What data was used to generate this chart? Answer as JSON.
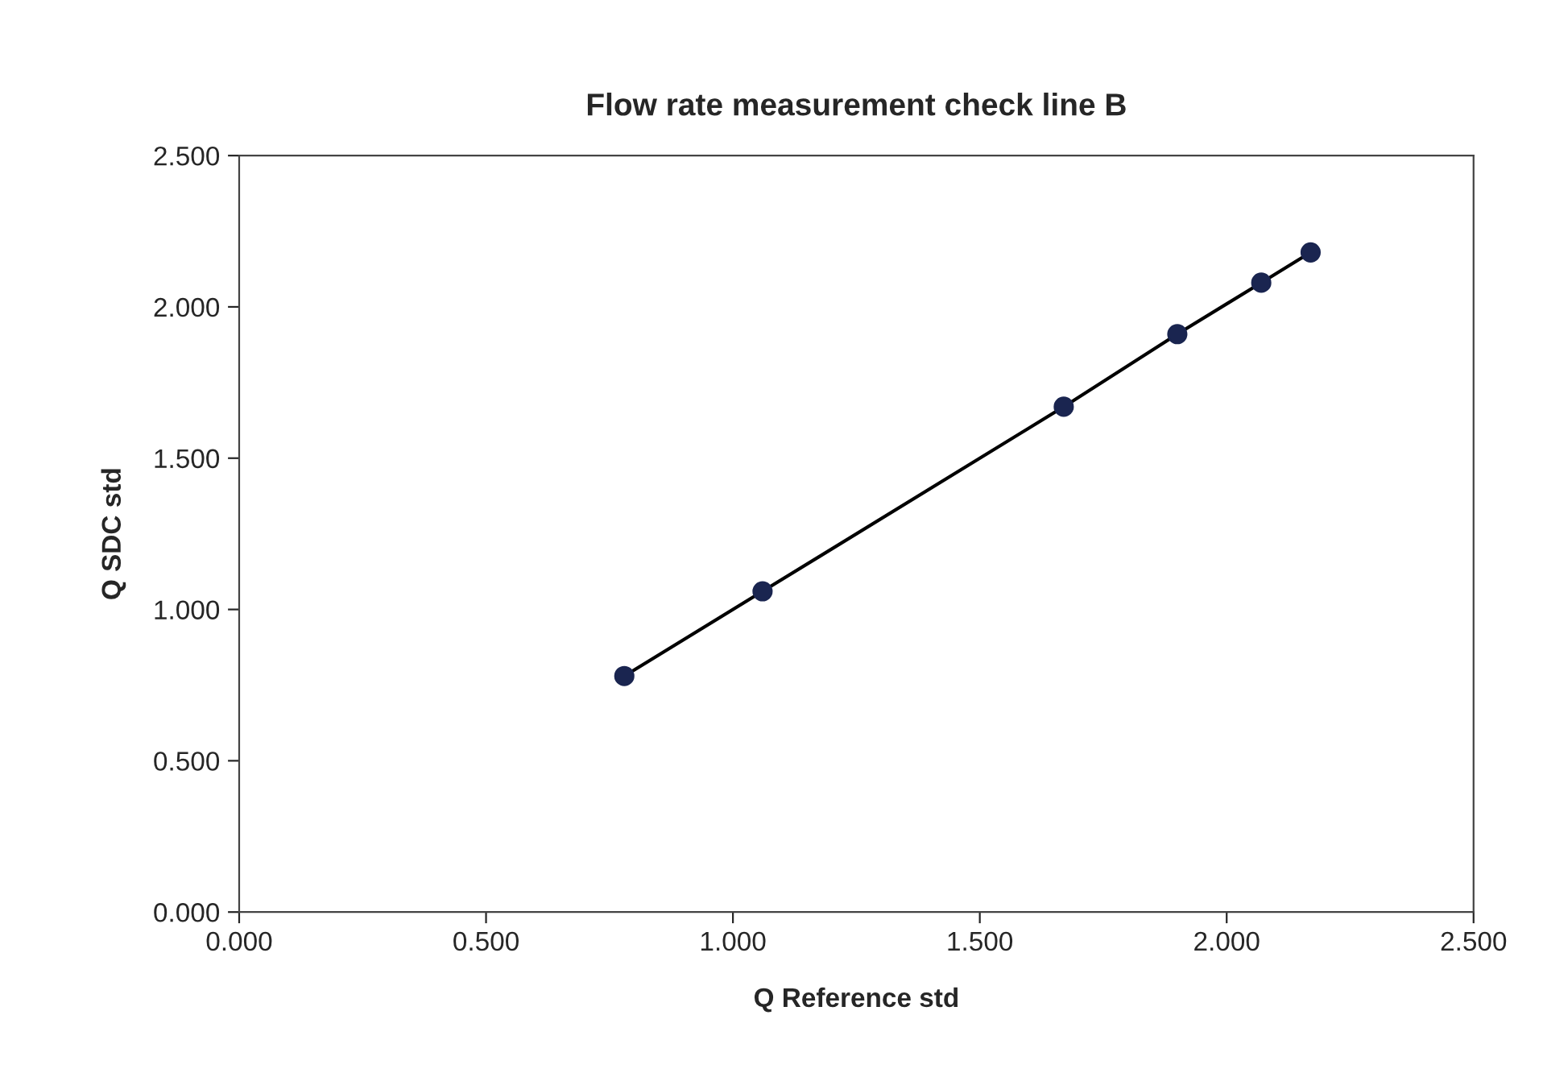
{
  "chart_data": {
    "type": "line",
    "title": "Flow rate measurement check line B",
    "xlabel": "Q Reference std",
    "ylabel": "Q SDC std",
    "x": [
      0.78,
      1.06,
      1.67,
      1.9,
      2.07,
      2.17
    ],
    "series": [
      {
        "color": "#1a2550",
        "values": [
          0.78,
          1.06,
          1.67,
          1.91,
          2.08,
          2.18
        ]
      }
    ],
    "marker": "circle",
    "line_style": "solid",
    "grid": false,
    "xlim": [
      0,
      2.5
    ],
    "xticks": [
      {
        "value": 0,
        "label": "0.000"
      },
      {
        "value": 0.5,
        "label": "0.500"
      },
      {
        "value": 1,
        "label": "1.000"
      },
      {
        "value": 1.5,
        "label": "1.500"
      },
      {
        "value": 2,
        "label": "2.000"
      },
      {
        "value": 2.5,
        "label": "2.500"
      }
    ],
    "ylim": [
      0,
      2.5
    ],
    "yticks": [
      {
        "value": 0,
        "label": "0.000"
      },
      {
        "value": 0.5,
        "label": "0.500"
      },
      {
        "value": 1,
        "label": "1.000"
      },
      {
        "value": 1.5,
        "label": "1.500"
      },
      {
        "value": 2,
        "label": "2.000"
      },
      {
        "value": 2.5,
        "label": "2.500"
      }
    ]
  }
}
